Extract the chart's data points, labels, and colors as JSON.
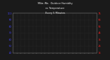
{
  "title": "Milw. We. Outdoor Hum.",
  "bg_color": "#1a1a1a",
  "plot_bg": "#1a1a1a",
  "grid_color": "#444444",
  "blue_color": "#4444ff",
  "red_color": "#ff2222",
  "ylim_left": [
    40,
    100
  ],
  "ylim_right": [
    15,
    75
  ],
  "n_points": 144,
  "seed": 7,
  "right_yticks": [
    15,
    25,
    35,
    45,
    55,
    65,
    75
  ],
  "left_yticks": [
    40,
    50,
    60,
    70,
    80,
    90,
    100
  ]
}
